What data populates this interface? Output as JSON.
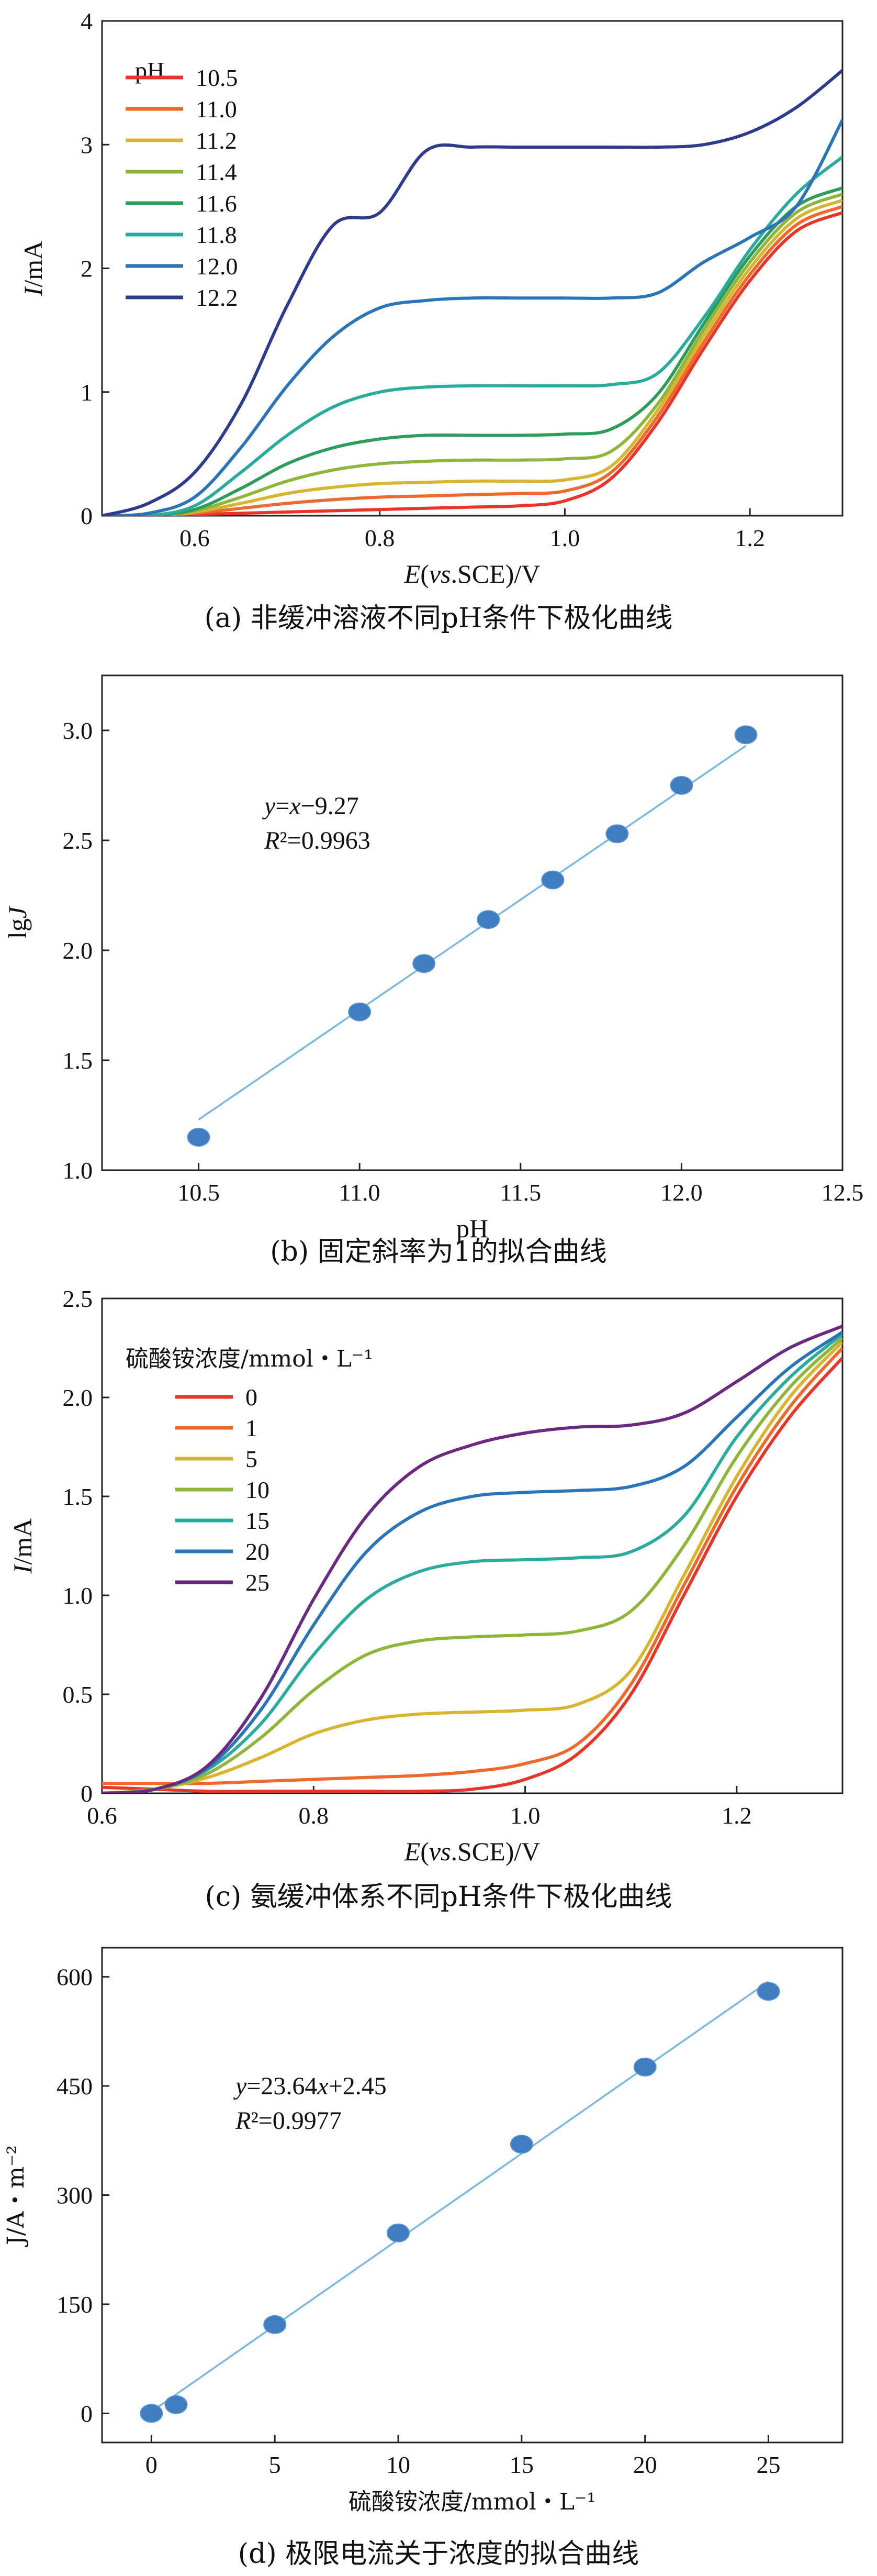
{
  "chart_data": [
    {
      "id": "a",
      "type": "line",
      "caption": "(a) 非缓冲溶液不同pH条件下极化曲线",
      "xlabel": "E(vs.SCE)/V",
      "ylabel": "I/mA",
      "xlim": [
        0.5,
        1.3
      ],
      "ylim": [
        0,
        4
      ],
      "xticks": [
        0.6,
        0.8,
        1.0,
        1.2
      ],
      "xtick_labels": [
        "0.6",
        "0.8",
        "1.0",
        "1.2"
      ],
      "yticks": [
        0,
        1,
        2,
        3,
        4
      ],
      "ytick_labels": [
        "0",
        "1",
        "2",
        "3",
        "4"
      ],
      "legend_title": "pH",
      "legend_position": "top-left",
      "series": [
        {
          "name": "10.5",
          "color": "#e8352a",
          "x": [
            0.5,
            0.55,
            0.6,
            0.65,
            0.7,
            0.75,
            0.8,
            0.85,
            0.9,
            0.95,
            1.0,
            1.05,
            1.1,
            1.15,
            1.2,
            1.25,
            1.3
          ],
          "y": [
            0,
            0,
            0.01,
            0.02,
            0.03,
            0.04,
            0.05,
            0.06,
            0.07,
            0.08,
            0.12,
            0.3,
            0.75,
            1.35,
            1.9,
            2.3,
            2.45
          ]
        },
        {
          "name": "11.0",
          "color": "#ee6a2c",
          "x": [
            0.5,
            0.55,
            0.6,
            0.65,
            0.7,
            0.75,
            0.8,
            0.85,
            0.9,
            0.95,
            1.0,
            1.05,
            1.1,
            1.15,
            1.2,
            1.25,
            1.3
          ],
          "y": [
            0,
            0,
            0.02,
            0.06,
            0.1,
            0.13,
            0.15,
            0.16,
            0.17,
            0.18,
            0.2,
            0.35,
            0.8,
            1.4,
            1.95,
            2.35,
            2.5
          ]
        },
        {
          "name": "11.2",
          "color": "#d7b52f",
          "x": [
            0.5,
            0.55,
            0.6,
            0.65,
            0.7,
            0.75,
            0.8,
            0.85,
            0.9,
            0.95,
            1.0,
            1.05,
            1.1,
            1.15,
            1.2,
            1.25,
            1.3
          ],
          "y": [
            0,
            0,
            0.03,
            0.1,
            0.18,
            0.23,
            0.26,
            0.27,
            0.28,
            0.28,
            0.29,
            0.4,
            0.85,
            1.45,
            2.0,
            2.4,
            2.55
          ]
        },
        {
          "name": "11.4",
          "color": "#8fb53a",
          "x": [
            0.5,
            0.55,
            0.6,
            0.65,
            0.7,
            0.75,
            0.8,
            0.85,
            0.9,
            0.95,
            1.0,
            1.05,
            1.1,
            1.15,
            1.2,
            1.25,
            1.3
          ],
          "y": [
            0,
            0,
            0.04,
            0.15,
            0.28,
            0.37,
            0.42,
            0.44,
            0.45,
            0.45,
            0.46,
            0.52,
            0.9,
            1.5,
            2.05,
            2.45,
            2.6
          ]
        },
        {
          "name": "11.6",
          "color": "#2e9c5a",
          "x": [
            0.5,
            0.55,
            0.6,
            0.65,
            0.7,
            0.75,
            0.8,
            0.85,
            0.9,
            0.95,
            1.0,
            1.05,
            1.1,
            1.15,
            1.2,
            1.25,
            1.3
          ],
          "y": [
            0,
            0,
            0.05,
            0.22,
            0.42,
            0.55,
            0.62,
            0.65,
            0.65,
            0.65,
            0.66,
            0.7,
            0.98,
            1.55,
            2.1,
            2.5,
            2.65
          ]
        },
        {
          "name": "11.8",
          "color": "#2bab9c",
          "x": [
            0.5,
            0.55,
            0.6,
            0.65,
            0.7,
            0.75,
            0.8,
            0.85,
            0.9,
            0.95,
            1.0,
            1.05,
            1.1,
            1.15,
            1.2,
            1.25,
            1.3
          ],
          "y": [
            0,
            0,
            0.08,
            0.35,
            0.65,
            0.88,
            1.0,
            1.04,
            1.05,
            1.05,
            1.05,
            1.06,
            1.15,
            1.6,
            2.15,
            2.6,
            2.9
          ]
        },
        {
          "name": "12.0",
          "color": "#2b74b8",
          "x": [
            0.5,
            0.55,
            0.6,
            0.65,
            0.7,
            0.75,
            0.8,
            0.85,
            0.9,
            0.95,
            1.0,
            1.05,
            1.1,
            1.15,
            1.2,
            1.25,
            1.3
          ],
          "y": [
            0,
            0.02,
            0.15,
            0.55,
            1.05,
            1.45,
            1.68,
            1.74,
            1.76,
            1.76,
            1.76,
            1.76,
            1.8,
            2.05,
            2.25,
            2.5,
            3.2
          ]
        },
        {
          "name": "12.2",
          "color": "#2e3a8c",
          "x": [
            0.5,
            0.55,
            0.6,
            0.65,
            0.7,
            0.75,
            0.8,
            0.85,
            0.9,
            0.95,
            1.0,
            1.05,
            1.1,
            1.15,
            1.2,
            1.25,
            1.3
          ],
          "y": [
            0,
            0.1,
            0.35,
            0.9,
            1.7,
            2.35,
            2.45,
            2.95,
            2.98,
            2.98,
            2.98,
            2.98,
            2.98,
            3.0,
            3.1,
            3.3,
            3.6
          ]
        }
      ]
    },
    {
      "id": "b",
      "type": "scatter",
      "caption": "(b) 固定斜率为1的拟合曲线",
      "xlabel": "pH",
      "ylabel": "lgJ",
      "xlim": [
        10.2,
        12.5
      ],
      "ylim": [
        1.0,
        3.25
      ],
      "xticks": [
        10.5,
        11.0,
        11.5,
        12.0,
        12.5
      ],
      "xtick_labels": [
        "10.5",
        "11.0",
        "11.5",
        "12.0",
        "12.5"
      ],
      "yticks": [
        1.0,
        1.5,
        2.0,
        2.5,
        3.0
      ],
      "ytick_labels": [
        "1.0",
        "1.5",
        "2.0",
        "2.5",
        "3.0"
      ],
      "points": {
        "x": [
          10.5,
          11.0,
          11.2,
          11.4,
          11.6,
          11.8,
          12.0,
          12.2
        ],
        "y": [
          1.15,
          1.72,
          1.94,
          2.14,
          2.32,
          2.53,
          2.75,
          2.98
        ]
      },
      "fit": {
        "x": [
          10.5,
          12.2
        ],
        "y": [
          1.23,
          2.93
        ]
      },
      "equation": "y=x−9.27",
      "r2": "R²=0.9963",
      "point_color": "#3f7cc0",
      "line_color": "#7ab8e0"
    },
    {
      "id": "c",
      "type": "line",
      "caption": "(c) 氨缓冲体系不同pH条件下极化曲线",
      "xlabel": "E(vs.SCE)/V",
      "ylabel": "I/mA",
      "xlim": [
        0.6,
        1.3
      ],
      "ylim": [
        0,
        2.5
      ],
      "xticks": [
        0.6,
        0.8,
        1.0,
        1.2
      ],
      "xtick_labels": [
        "0.6",
        "0.8",
        "1.0",
        "1.2"
      ],
      "yticks": [
        0,
        0.5,
        1.0,
        1.5,
        2.0,
        2.5
      ],
      "ytick_labels": [
        "0",
        "0.5",
        "1.0",
        "1.5",
        "2.0",
        "2.5"
      ],
      "legend_title": "硫酸铵浓度/mmol・L⁻¹",
      "legend_position": "top-left",
      "series": [
        {
          "name": "0",
          "color": "#e8352a",
          "x": [
            0.6,
            0.65,
            0.7,
            0.75,
            0.8,
            0.85,
            0.9,
            0.95,
            1.0,
            1.05,
            1.1,
            1.15,
            1.2,
            1.25,
            1.3
          ],
          "y": [
            0.03,
            0.02,
            0.01,
            0.01,
            0.01,
            0.01,
            0.01,
            0.02,
            0.07,
            0.2,
            0.5,
            1.0,
            1.5,
            1.9,
            2.2
          ]
        },
        {
          "name": "1",
          "color": "#ee6a2c",
          "x": [
            0.6,
            0.65,
            0.7,
            0.75,
            0.8,
            0.85,
            0.9,
            0.95,
            1.0,
            1.05,
            1.1,
            1.15,
            1.2,
            1.25,
            1.3
          ],
          "y": [
            0.05,
            0.05,
            0.05,
            0.06,
            0.07,
            0.08,
            0.09,
            0.11,
            0.15,
            0.25,
            0.55,
            1.05,
            1.55,
            1.95,
            2.25
          ]
        },
        {
          "name": "5",
          "color": "#d7b52f",
          "x": [
            0.6,
            0.65,
            0.7,
            0.75,
            0.8,
            0.85,
            0.9,
            0.95,
            1.0,
            1.05,
            1.1,
            1.15,
            1.2,
            1.25,
            1.3
          ],
          "y": [
            0.0,
            0.02,
            0.08,
            0.18,
            0.3,
            0.37,
            0.4,
            0.41,
            0.42,
            0.45,
            0.62,
            1.1,
            1.6,
            2.0,
            2.28
          ]
        },
        {
          "name": "10",
          "color": "#8fb53a",
          "x": [
            0.6,
            0.65,
            0.7,
            0.75,
            0.8,
            0.85,
            0.9,
            0.95,
            1.0,
            1.05,
            1.1,
            1.15,
            1.2,
            1.25,
            1.3
          ],
          "y": [
            0.0,
            0.02,
            0.1,
            0.28,
            0.52,
            0.7,
            0.77,
            0.79,
            0.8,
            0.82,
            0.92,
            1.25,
            1.7,
            2.05,
            2.3
          ]
        },
        {
          "name": "15",
          "color": "#2bab9c",
          "x": [
            0.6,
            0.65,
            0.7,
            0.75,
            0.8,
            0.85,
            0.9,
            0.95,
            1.0,
            1.05,
            1.1,
            1.15,
            1.2,
            1.25,
            1.3
          ],
          "y": [
            0.0,
            0.02,
            0.12,
            0.35,
            0.7,
            0.98,
            1.12,
            1.17,
            1.18,
            1.19,
            1.22,
            1.4,
            1.8,
            2.1,
            2.32
          ]
        },
        {
          "name": "20",
          "color": "#2b74b8",
          "x": [
            0.6,
            0.65,
            0.7,
            0.75,
            0.8,
            0.85,
            0.9,
            0.95,
            1.0,
            1.05,
            1.1,
            1.15,
            1.2,
            1.25,
            1.3
          ],
          "y": [
            0.0,
            0.02,
            0.13,
            0.42,
            0.85,
            1.22,
            1.42,
            1.5,
            1.52,
            1.53,
            1.55,
            1.65,
            1.9,
            2.15,
            2.33
          ]
        },
        {
          "name": "25",
          "color": "#6a2a80",
          "x": [
            0.6,
            0.65,
            0.7,
            0.75,
            0.8,
            0.85,
            0.9,
            0.95,
            1.0,
            1.05,
            1.1,
            1.15,
            1.2,
            1.25,
            1.3
          ],
          "y": [
            0.0,
            0.02,
            0.14,
            0.48,
            0.98,
            1.4,
            1.65,
            1.76,
            1.82,
            1.85,
            1.86,
            1.92,
            2.08,
            2.25,
            2.36
          ]
        }
      ]
    },
    {
      "id": "d",
      "type": "scatter",
      "caption": "(d) 极限电流关于浓度的拟合曲线",
      "xlabel": "硫酸铵浓度/mmol・L⁻¹",
      "ylabel": "J/A・m⁻²",
      "xlim": [
        -2,
        28
      ],
      "ylim": [
        -40,
        640
      ],
      "xticks": [
        0,
        5,
        10,
        15,
        20,
        25
      ],
      "xtick_labels": [
        "0",
        "5",
        "10",
        "15",
        "20",
        "25"
      ],
      "yticks": [
        0,
        150,
        300,
        450,
        600
      ],
      "ytick_labels": [
        "0",
        "150",
        "300",
        "450",
        "600"
      ],
      "points": {
        "x": [
          0,
          1,
          5,
          10,
          15,
          20,
          25
        ],
        "y": [
          0,
          12,
          122,
          248,
          370,
          476,
          580
        ]
      },
      "fit": {
        "x": [
          0,
          25
        ],
        "y": [
          2.45,
          593.45
        ]
      },
      "equation": "y=23.64x+2.45",
      "r2": "R²=0.9977",
      "point_color": "#3f7cc0",
      "line_color": "#7ab8e0"
    }
  ]
}
